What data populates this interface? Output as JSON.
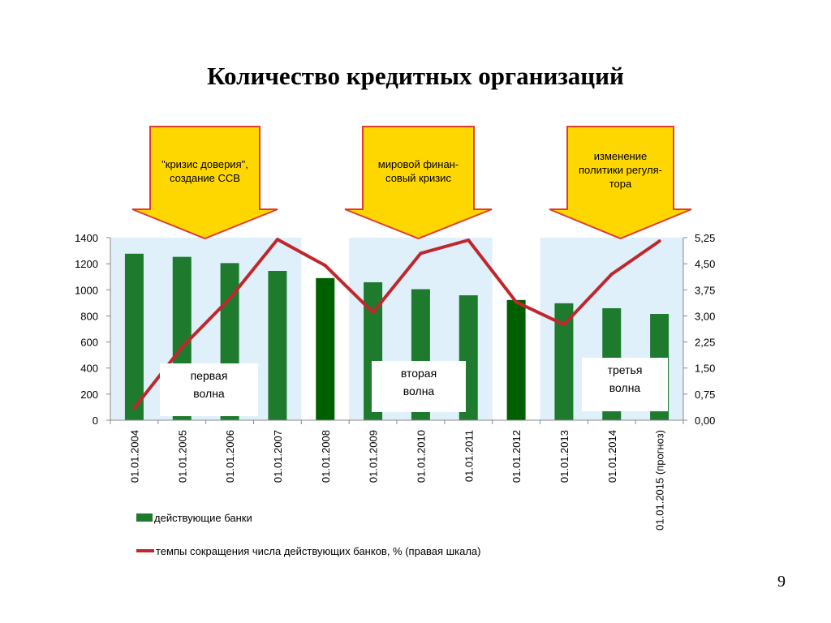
{
  "title": "Количество кредитных организаций",
  "page_number": "9",
  "callouts": [
    {
      "lines": [
        "\"кризис доверия\",",
        "создание ССВ"
      ]
    },
    {
      "lines": [
        "мировой финан-",
        "совый кризис"
      ]
    },
    {
      "lines": [
        "изменение",
        "политики регуля-",
        "тора"
      ]
    }
  ],
  "waves": [
    {
      "lines": [
        "первая",
        "волна"
      ]
    },
    {
      "lines": [
        "вторая",
        "волна"
      ]
    },
    {
      "lines": [
        "третья",
        "волна"
      ]
    }
  ],
  "colors": {
    "bar_light": "#1e7b2e",
    "bar_dark": "#006000",
    "line": "#c0272d",
    "shade": "#dff0fb",
    "arrow_fill": "#ffd700",
    "arrow_stroke": "#e03c31"
  },
  "chart_data": {
    "type": "bar",
    "categories": [
      "01.01.2004",
      "01.01.2005",
      "01.01.2006",
      "01.01.2007",
      "01.01.2008",
      "01.01.2009",
      "01.01.2010",
      "01.01.2011",
      "01.01.2012",
      "01.01.2013",
      "01.01.2014",
      "01.01.2015 (прогноз)"
    ],
    "series": [
      {
        "name": "действующие банки",
        "type": "bar",
        "axis": "left",
        "values": [
          1277,
          1253,
          1205,
          1145,
          1090,
          1058,
          1005,
          958,
          922,
          897,
          859,
          815
        ]
      },
      {
        "name": "темпы сокращения числа действующих банков, % (правая шкала)",
        "type": "line",
        "axis": "right",
        "values": [
          0.35,
          2.1,
          3.5,
          5.2,
          4.45,
          3.1,
          4.8,
          5.18,
          3.4,
          2.75,
          4.2,
          5.15
        ]
      }
    ],
    "ylim_left": [
      0,
      1400
    ],
    "yticks_left": [
      "0",
      "200",
      "400",
      "600",
      "800",
      "1000",
      "1200",
      "1400"
    ],
    "ylim_right": [
      0,
      5.25
    ],
    "yticks_right": [
      "0,00",
      "0,75",
      "1,50",
      "2,25",
      "3,00",
      "3,75",
      "4,50",
      "5,25"
    ],
    "dark_bar_categories": [
      "01.01.2008",
      "01.01.2012"
    ],
    "shaded_category_ranges": [
      [
        0,
        3
      ],
      [
        5,
        7
      ],
      [
        9,
        11
      ]
    ],
    "grid": false,
    "legend_position": "bottom-left"
  }
}
